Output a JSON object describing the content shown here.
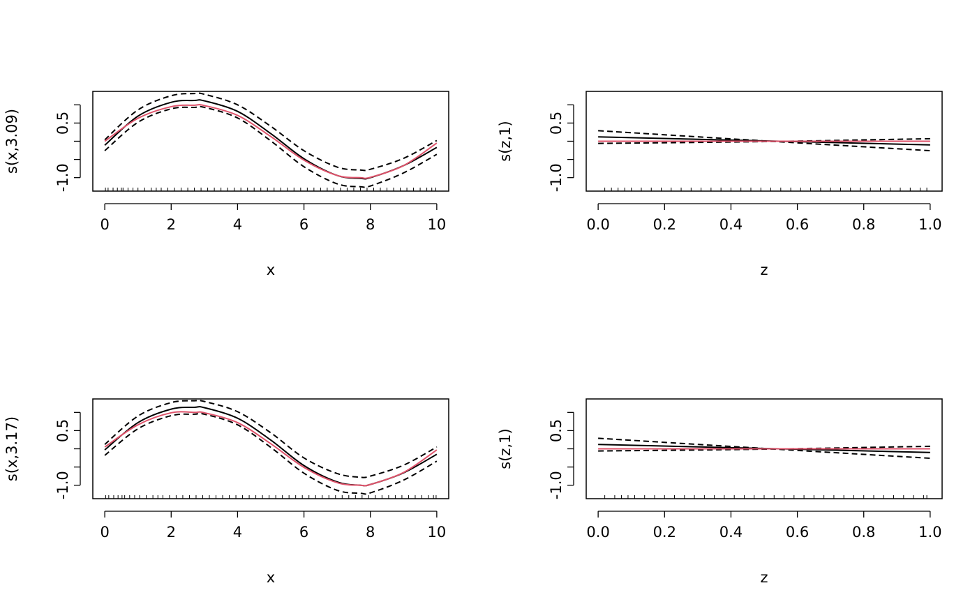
{
  "chart_data": [
    {
      "type": "line",
      "xlabel": "x",
      "ylabel": "s(x,3.09)",
      "xlim": [
        -0.36,
        10.36
      ],
      "ylim": [
        -1.37,
        1.37
      ],
      "x_ticks": [
        "0",
        "2",
        "4",
        "6",
        "8",
        "10"
      ],
      "x_tick_values": [
        0,
        2,
        4,
        6,
        8,
        10
      ],
      "y_ticks": [
        "-1.0",
        "0.5"
      ],
      "y_tick_values": [
        -1.0,
        0.5
      ],
      "y_minor_ticks": [
        -0.5,
        0.0,
        1.0
      ],
      "series": [
        {
          "style": "solid",
          "color": "#000000",
          "x": [
            0,
            1,
            2,
            2.7,
            3,
            4,
            5,
            6,
            7,
            7.7,
            8,
            9,
            10
          ],
          "y": [
            -0.11,
            0.69,
            1.07,
            1.12,
            1.11,
            0.82,
            0.21,
            -0.48,
            -0.94,
            -1.02,
            -1.0,
            -0.67,
            -0.17
          ]
        },
        {
          "style": "dashed",
          "color": "#000000",
          "x": [
            0,
            1,
            2,
            2.7,
            3,
            4,
            5,
            6,
            7,
            7.7,
            8,
            9,
            10
          ],
          "y": [
            0.04,
            0.86,
            1.25,
            1.31,
            1.29,
            1.0,
            0.41,
            -0.26,
            -0.71,
            -0.79,
            -0.77,
            -0.47,
            0.02
          ]
        },
        {
          "style": "dashed",
          "color": "#000000",
          "x": [
            0,
            1,
            2,
            2.7,
            3,
            4,
            5,
            6,
            7,
            7.7,
            8,
            9,
            10
          ],
          "y": [
            -0.26,
            0.52,
            0.89,
            0.93,
            0.93,
            0.64,
            0.01,
            -0.7,
            -1.17,
            -1.25,
            -1.23,
            -0.87,
            -0.36
          ]
        },
        {
          "style": "solid",
          "color": "#df536b",
          "x": [
            0,
            1,
            2,
            2.7,
            3,
            4,
            5,
            6,
            7,
            7.7,
            8,
            9,
            10
          ],
          "y": [
            0.0,
            0.63,
            0.95,
            0.99,
            0.98,
            0.71,
            0.13,
            -0.52,
            -0.94,
            -1.0,
            -0.99,
            -0.67,
            -0.05
          ]
        }
      ],
      "rug": [
        0.02,
        0.1,
        0.25,
        0.38,
        0.5,
        0.55,
        0.7,
        0.85,
        1.0,
        1.2,
        1.4,
        1.55,
        1.7,
        1.9,
        2.1,
        2.3,
        2.5,
        2.7,
        2.9,
        3.1,
        3.3,
        3.5,
        3.7,
        3.9,
        4.1,
        4.3,
        4.5,
        4.7,
        4.9,
        5.1,
        5.3,
        5.5,
        5.7,
        5.9,
        6.1,
        6.3,
        6.5,
        6.7,
        6.9,
        7.1,
        7.3,
        7.5,
        7.7,
        7.9,
        8.1,
        8.3,
        8.5,
        8.7,
        8.9,
        9.1,
        9.3,
        9.5,
        9.7,
        9.85,
        9.97
      ]
    },
    {
      "type": "line",
      "xlabel": "z",
      "ylabel": "s(z,1)",
      "xlim": [
        -0.036,
        1.036
      ],
      "ylim": [
        -1.37,
        1.37
      ],
      "x_ticks": [
        "0.0",
        "0.2",
        "0.4",
        "0.6",
        "0.8",
        "1.0"
      ],
      "x_tick_values": [
        0.0,
        0.2,
        0.4,
        0.6,
        0.8,
        1.0
      ],
      "y_ticks": [
        "-1.0",
        "0.5"
      ],
      "y_tick_values": [
        -1.0,
        0.5
      ],
      "y_minor_ticks": [
        -0.5,
        0.0,
        1.0
      ],
      "series": [
        {
          "style": "solid",
          "color": "#000000",
          "x": [
            0.0,
            1.0
          ],
          "y": [
            0.12,
            -0.1
          ]
        },
        {
          "style": "dashed",
          "color": "#000000",
          "x": [
            0.0,
            0.5,
            1.0
          ],
          "y": [
            0.29,
            0.01,
            -0.26
          ]
        },
        {
          "style": "dashed",
          "color": "#000000",
          "x": [
            0.0,
            0.5,
            1.0
          ],
          "y": [
            -0.06,
            -0.01,
            0.07
          ]
        },
        {
          "style": "solid",
          "color": "#df536b",
          "x": [
            0.0,
            1.0
          ],
          "y": [
            0.0,
            0.0
          ]
        }
      ],
      "rug": [
        0.02,
        0.04,
        0.06,
        0.08,
        0.1,
        0.13,
        0.16,
        0.19,
        0.22,
        0.25,
        0.28,
        0.31,
        0.34,
        0.37,
        0.4,
        0.43,
        0.46,
        0.49,
        0.52,
        0.55,
        0.58,
        0.61,
        0.64,
        0.67,
        0.7,
        0.73,
        0.76,
        0.79,
        0.82,
        0.85,
        0.88,
        0.91,
        0.94,
        0.97,
        0.99
      ]
    },
    {
      "type": "line",
      "xlabel": "x",
      "ylabel": "s(x,3.17)",
      "xlim": [
        -0.36,
        10.36
      ],
      "ylim": [
        -1.37,
        1.37
      ],
      "x_ticks": [
        "0",
        "2",
        "4",
        "6",
        "8",
        "10"
      ],
      "x_tick_values": [
        0,
        2,
        4,
        6,
        8,
        10
      ],
      "y_ticks": [
        "-1.0",
        "0.5"
      ],
      "y_tick_values": [
        -1.0,
        0.5
      ],
      "y_minor_ticks": [
        -0.5,
        0.0,
        1.0
      ],
      "series": [
        {
          "style": "solid",
          "color": "#000000",
          "x": [
            0,
            1,
            2,
            2.7,
            3,
            4,
            5,
            6,
            7,
            7.7,
            8,
            9,
            10
          ],
          "y": [
            -0.03,
            0.72,
            1.09,
            1.14,
            1.13,
            0.84,
            0.24,
            -0.46,
            -0.91,
            -1.0,
            -0.98,
            -0.66,
            -0.15
          ]
        },
        {
          "style": "dashed",
          "color": "#000000",
          "x": [
            0,
            1,
            2,
            2.7,
            3,
            4,
            5,
            6,
            7,
            7.7,
            8,
            9,
            10
          ],
          "y": [
            0.12,
            0.9,
            1.27,
            1.32,
            1.3,
            1.02,
            0.44,
            -0.25,
            -0.68,
            -0.78,
            -0.75,
            -0.45,
            0.05
          ]
        },
        {
          "style": "dashed",
          "color": "#000000",
          "x": [
            0,
            1,
            2,
            2.7,
            3,
            4,
            5,
            6,
            7,
            7.7,
            8,
            9,
            10
          ],
          "y": [
            -0.18,
            0.55,
            0.91,
            0.95,
            0.95,
            0.66,
            0.04,
            -0.67,
            -1.14,
            -1.22,
            -1.21,
            -0.86,
            -0.34
          ]
        },
        {
          "style": "solid",
          "color": "#df536b",
          "x": [
            0,
            1,
            2,
            2.7,
            3,
            4,
            5,
            6,
            7,
            7.7,
            8,
            9,
            10
          ],
          "y": [
            0.05,
            0.66,
            0.99,
            1.0,
            0.99,
            0.72,
            0.14,
            -0.51,
            -0.93,
            -1.0,
            -0.98,
            -0.65,
            -0.03
          ]
        }
      ],
      "rug": [
        0.03,
        0.12,
        0.27,
        0.4,
        0.52,
        0.6,
        0.75,
        0.9,
        1.05,
        1.25,
        1.45,
        1.6,
        1.75,
        1.95,
        2.15,
        2.35,
        2.55,
        2.75,
        2.95,
        3.15,
        3.35,
        3.55,
        3.75,
        3.95,
        4.15,
        4.35,
        4.55,
        4.75,
        4.95,
        5.15,
        5.35,
        5.55,
        5.75,
        5.95,
        6.15,
        6.35,
        6.55,
        6.75,
        6.95,
        7.15,
        7.35,
        7.55,
        7.75,
        7.95,
        8.15,
        8.35,
        8.55,
        8.75,
        8.95,
        9.15,
        9.35,
        9.55,
        9.75,
        9.9,
        9.98
      ]
    },
    {
      "type": "line",
      "xlabel": "z",
      "ylabel": "s(z,1)",
      "xlim": [
        -0.036,
        1.036
      ],
      "ylim": [
        -1.37,
        1.37
      ],
      "x_ticks": [
        "0.0",
        "0.2",
        "0.4",
        "0.6",
        "0.8",
        "1.0"
      ],
      "x_tick_values": [
        0.0,
        0.2,
        0.4,
        0.6,
        0.8,
        1.0
      ],
      "y_ticks": [
        "-1.0",
        "0.5"
      ],
      "y_tick_values": [
        -1.0,
        0.5
      ],
      "y_minor_ticks": [
        -0.5,
        0.0,
        1.0
      ],
      "series": [
        {
          "style": "solid",
          "color": "#000000",
          "x": [
            0.0,
            1.0
          ],
          "y": [
            0.12,
            -0.1
          ]
        },
        {
          "style": "dashed",
          "color": "#000000",
          "x": [
            0.0,
            0.5,
            1.0
          ],
          "y": [
            0.29,
            0.01,
            -0.26
          ]
        },
        {
          "style": "dashed",
          "color": "#000000",
          "x": [
            0.0,
            0.5,
            1.0
          ],
          "y": [
            -0.06,
            -0.01,
            0.07
          ]
        },
        {
          "style": "solid",
          "color": "#df536b",
          "x": [
            0.0,
            1.0
          ],
          "y": [
            0.0,
            0.0
          ]
        }
      ],
      "rug": [
        0.02,
        0.05,
        0.07,
        0.09,
        0.11,
        0.14,
        0.17,
        0.2,
        0.23,
        0.26,
        0.29,
        0.32,
        0.35,
        0.38,
        0.41,
        0.44,
        0.47,
        0.5,
        0.53,
        0.56,
        0.59,
        0.62,
        0.65,
        0.68,
        0.71,
        0.74,
        0.77,
        0.8,
        0.83,
        0.86,
        0.89,
        0.92,
        0.95,
        0.98,
        0.99
      ]
    }
  ]
}
